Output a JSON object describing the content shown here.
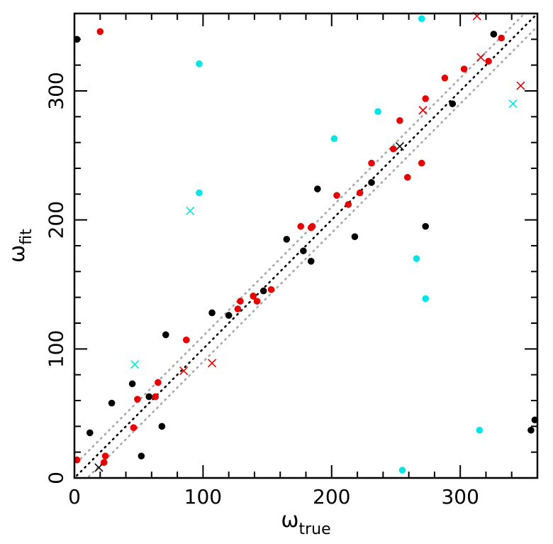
{
  "chart_data": {
    "type": "scatter",
    "xlabel": {
      "symbol": "ω",
      "subscript": "true"
    },
    "ylabel": {
      "symbol": "ω",
      "subscript": "fit"
    },
    "xlim": [
      0,
      360
    ],
    "ylim": [
      0,
      360
    ],
    "x_ticks": [
      0,
      100,
      200,
      300
    ],
    "y_ticks": [
      0,
      100,
      200,
      300
    ],
    "reference_lines": [
      {
        "style": "dotted",
        "color": "#000000",
        "offset": 0
      },
      {
        "style": "dotted",
        "color": "#a6a6a6",
        "offset": 10
      },
      {
        "style": "dotted",
        "color": "#a6a6a6",
        "offset": -10
      }
    ],
    "series": [
      {
        "color": "#000000",
        "marker": "dot",
        "points": [
          [
            2,
            340
          ],
          [
            12,
            35
          ],
          [
            29,
            58
          ],
          [
            45,
            73
          ],
          [
            52,
            17
          ],
          [
            58,
            63
          ],
          [
            68,
            40
          ],
          [
            71,
            111
          ],
          [
            107,
            128
          ],
          [
            120,
            126
          ],
          [
            147,
            145
          ],
          [
            165,
            185
          ],
          [
            178,
            176
          ],
          [
            184,
            168
          ],
          [
            189,
            224
          ],
          [
            218,
            187
          ],
          [
            231,
            229
          ],
          [
            273,
            195
          ],
          [
            294,
            290
          ],
          [
            326,
            344
          ],
          [
            355,
            37
          ],
          [
            358,
            45
          ]
        ]
      },
      {
        "color": "#000000",
        "marker": "cross",
        "points": [
          [
            19,
            8
          ],
          [
            253,
            257
          ]
        ]
      },
      {
        "color": "#e60000",
        "marker": "dot",
        "points": [
          [
            2,
            14
          ],
          [
            20,
            346
          ],
          [
            23,
            12
          ],
          [
            24,
            17
          ],
          [
            46,
            39
          ],
          [
            49,
            61
          ],
          [
            63,
            63
          ],
          [
            65,
            74
          ],
          [
            87,
            107
          ],
          [
            127,
            131
          ],
          [
            129,
            137
          ],
          [
            139,
            141
          ],
          [
            142,
            137
          ],
          [
            153,
            146
          ],
          [
            176,
            195
          ],
          [
            184,
            194
          ],
          [
            185,
            195
          ],
          [
            204,
            219
          ],
          [
            213,
            212
          ],
          [
            222,
            221
          ],
          [
            231,
            244
          ],
          [
            248,
            255
          ],
          [
            253,
            277
          ],
          [
            259,
            233
          ],
          [
            270,
            244
          ],
          [
            273,
            294
          ],
          [
            288,
            310
          ],
          [
            303,
            317
          ],
          [
            322,
            323
          ],
          [
            332,
            341
          ]
        ]
      },
      {
        "color": "#e60000",
        "marker": "cross",
        "points": [
          [
            85,
            83
          ],
          [
            107,
            89
          ],
          [
            271,
            285
          ],
          [
            313,
            358
          ],
          [
            316,
            326
          ],
          [
            347,
            304
          ]
        ]
      },
      {
        "color": "#00e6e6",
        "marker": "dot",
        "points": [
          [
            97,
            321
          ],
          [
            97,
            221
          ],
          [
            202,
            263
          ],
          [
            236,
            284
          ],
          [
            255,
            6
          ],
          [
            266,
            170
          ],
          [
            270,
            356
          ],
          [
            273,
            139
          ],
          [
            315,
            37
          ]
        ]
      },
      {
        "color": "#00e6e6",
        "marker": "cross",
        "points": [
          [
            47,
            88
          ],
          [
            90,
            207
          ],
          [
            341,
            290
          ]
        ]
      }
    ]
  }
}
